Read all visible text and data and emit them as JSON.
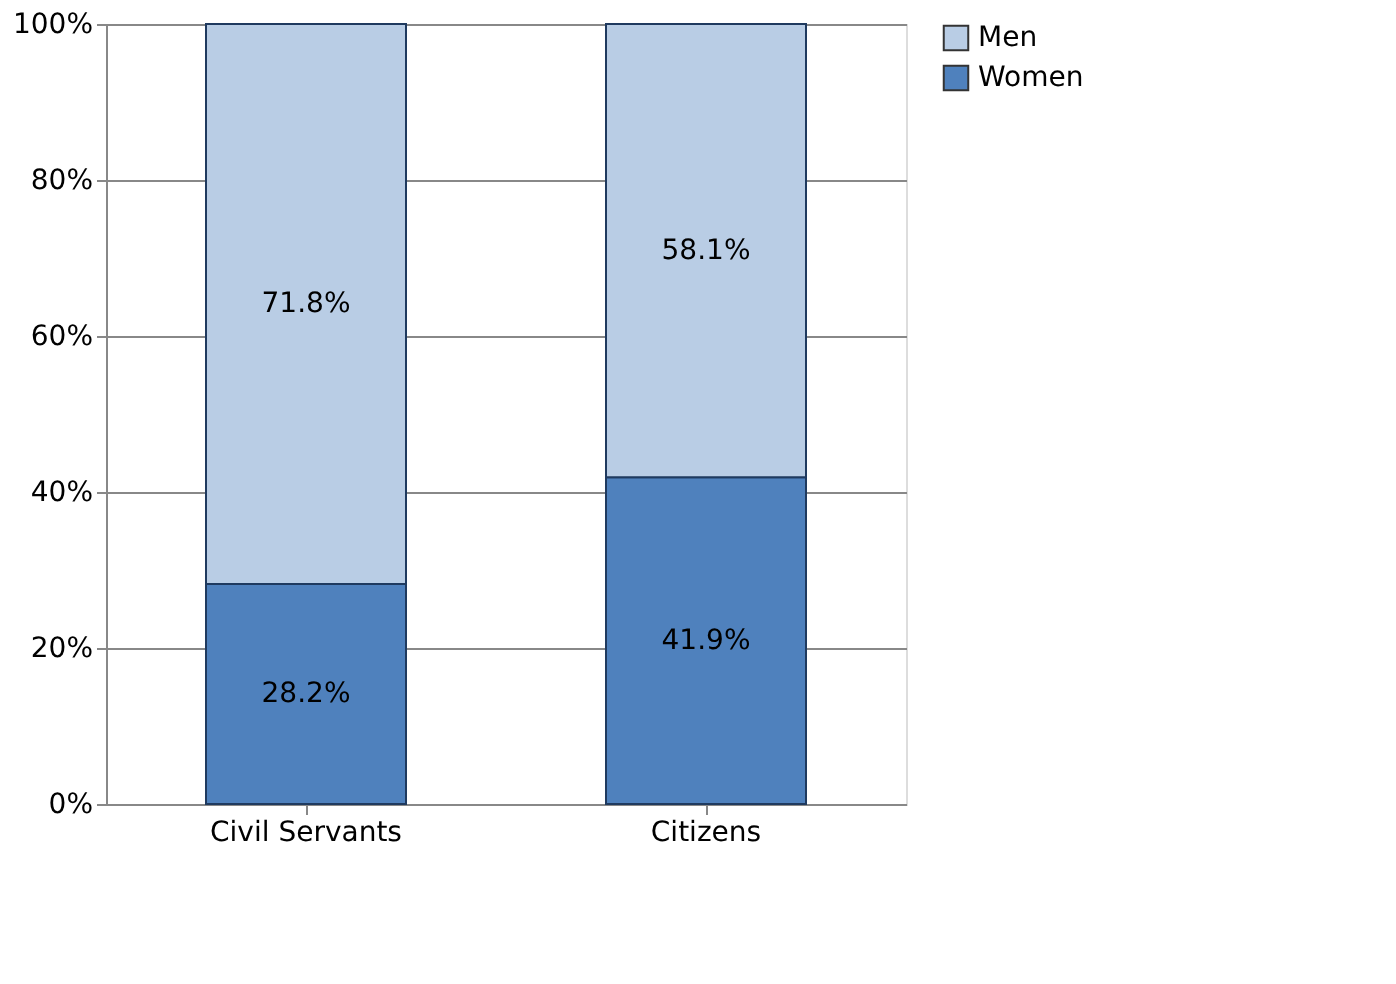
{
  "chart_data": {
    "type": "bar",
    "stacked": true,
    "categories": [
      "Civil Servants",
      "Citizens"
    ],
    "series": [
      {
        "name": "Women",
        "color": "#4f81bd",
        "values": [
          28.2,
          41.9
        ],
        "value_labels": [
          "28.2%",
          "41.9%"
        ]
      },
      {
        "name": "Men",
        "color": "#b9cde5",
        "values": [
          71.8,
          58.1
        ],
        "value_labels": [
          "71.8%",
          "58.1%"
        ]
      }
    ],
    "ylim": [
      0,
      100
    ],
    "yticks": [
      {
        "value": 0,
        "label": "0%"
      },
      {
        "value": 20,
        "label": "20%"
      },
      {
        "value": 40,
        "label": "40%"
      },
      {
        "value": 60,
        "label": "60%"
      },
      {
        "value": 80,
        "label": "80%"
      },
      {
        "value": 100,
        "label": "100%"
      }
    ],
    "grid": "y",
    "legend": "right"
  }
}
